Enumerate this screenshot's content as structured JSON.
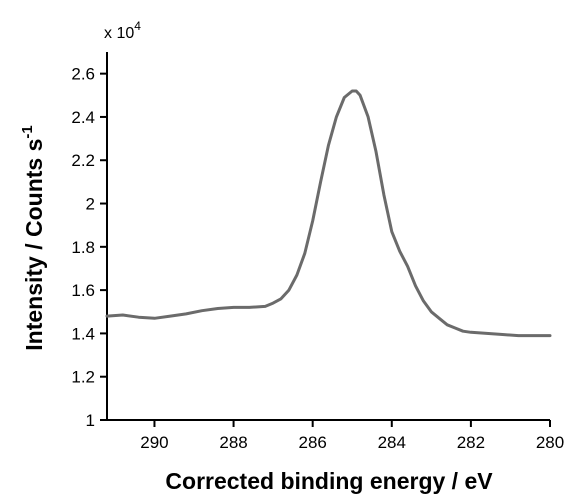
{
  "chart_data": {
    "type": "line",
    "title": "",
    "xlabel": "Corrected binding energy / eV",
    "ylabel_text": "Intensity / Counts s",
    "ylabel_superscript": "-1",
    "y_multiplier_text": "x 10",
    "y_multiplier_exponent": "4",
    "xlim": [
      291.2,
      280
    ],
    "ylim": [
      1,
      2.7
    ],
    "x_reversed": true,
    "xticks": [
      290,
      288,
      286,
      284,
      282,
      280
    ],
    "xtick_labels": [
      "290",
      "288",
      "286",
      "284",
      "282",
      "280"
    ],
    "yticks": [
      1,
      1.2,
      1.4,
      1.6,
      1.8,
      2,
      2.2,
      2.4,
      2.6
    ],
    "ytick_labels": [
      "1",
      "1.2",
      "1.4",
      "1.6",
      "1.8",
      "2",
      "2.2",
      "2.4",
      "2.6"
    ],
    "grid": false,
    "line_color": "#6b6b6b",
    "series": [
      {
        "x": [
          291.2,
          290.8,
          290.4,
          290.0,
          289.6,
          289.2,
          288.8,
          288.4,
          288.0,
          287.6,
          287.2,
          287.0,
          286.8,
          286.6,
          286.4,
          286.2,
          286.0,
          285.8,
          285.6,
          285.4,
          285.2,
          285.0,
          284.9,
          284.8,
          284.6,
          284.4,
          284.2,
          284.0,
          283.8,
          283.6,
          283.4,
          283.2,
          283.0,
          282.8,
          282.6,
          282.4,
          282.2,
          282.0,
          281.6,
          281.2,
          280.8,
          280.4,
          280.0
        ],
        "y": [
          1.48,
          1.485,
          1.475,
          1.47,
          1.48,
          1.49,
          1.505,
          1.515,
          1.52,
          1.52,
          1.525,
          1.54,
          1.56,
          1.6,
          1.67,
          1.77,
          1.92,
          2.1,
          2.27,
          2.4,
          2.49,
          2.52,
          2.52,
          2.5,
          2.4,
          2.24,
          2.04,
          1.87,
          1.78,
          1.71,
          1.62,
          1.55,
          1.5,
          1.47,
          1.44,
          1.425,
          1.41,
          1.405,
          1.4,
          1.395,
          1.39,
          1.39,
          1.39
        ]
      }
    ]
  }
}
